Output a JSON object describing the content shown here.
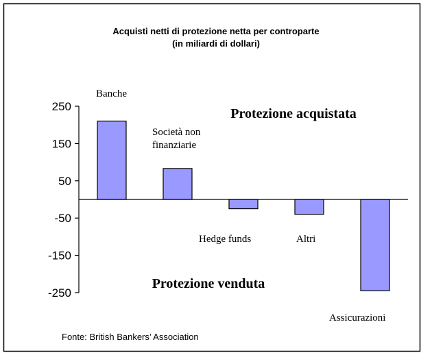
{
  "chart_data": {
    "type": "bar",
    "title": "Acquisti netti di protezione netta per controparte",
    "subtitle": "(in miliardi di dollari)",
    "categories": [
      "Banche",
      "Società non finanziarie",
      "Hedge funds",
      "Altri",
      "Assicurazioni"
    ],
    "values": [
      210,
      83,
      -25,
      -40,
      -245
    ],
    "color": "#9999ff",
    "ylim": [
      -250,
      250
    ],
    "yticks": [
      -250,
      -150,
      -50,
      50,
      150,
      250
    ],
    "annotations": [
      "Protezione acquistata",
      "Protezione venduta"
    ],
    "source": "Fonte: British Bankers’ Association"
  }
}
